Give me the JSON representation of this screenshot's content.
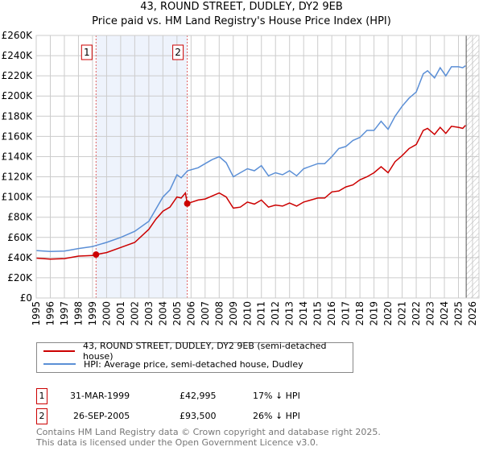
{
  "title": "43, ROUND STREET, DUDLEY, DY2 9EB",
  "subtitle": "Price paid vs. HM Land Registry's House Price Index (HPI)",
  "colors": {
    "property": "#cc0000",
    "hpi": "#5b8fd6",
    "shade": "#eef3fc"
  },
  "chart_data": {
    "type": "line",
    "xlim": [
      1995,
      2026
    ],
    "ylim": [
      0,
      260000
    ],
    "x_ticks": [
      "1995",
      "1996",
      "1997",
      "1998",
      "1999",
      "2000",
      "2001",
      "2002",
      "2003",
      "2004",
      "2005",
      "2006",
      "2007",
      "2008",
      "2009",
      "2010",
      "2011",
      "2012",
      "2013",
      "2014",
      "2015",
      "2016",
      "2017",
      "2018",
      "2019",
      "2020",
      "2021",
      "2022",
      "2023",
      "2024",
      "2025",
      "2026"
    ],
    "y_ticks": [
      "£0",
      "£20K",
      "£40K",
      "£60K",
      "£80K",
      "£100K",
      "£120K",
      "£140K",
      "£160K",
      "£180K",
      "£200K",
      "£220K",
      "£240K",
      "£260K"
    ],
    "series": [
      {
        "name": "43, ROUND STREET, DUDLEY, DY2 9EB (semi-detached house)",
        "color": "#cc0000",
        "x": [
          1995,
          1996,
          1997,
          1998,
          1999,
          1999.25,
          2000,
          2001,
          2002,
          2003,
          2003.5,
          2004,
          2004.5,
          2005,
          2005.3,
          2005.6,
          2005.73,
          2006.5,
          2007,
          2008,
          2008.5,
          2009,
          2009.5,
          2010,
          2010.5,
          2011,
          2011.5,
          2012,
          2012.5,
          2013,
          2013.5,
          2014,
          2015,
          2015.5,
          2016,
          2016.5,
          2017,
          2017.5,
          2018,
          2018.5,
          2019,
          2019.5,
          2020,
          2020.5,
          2021,
          2021.5,
          2022,
          2022.5,
          2022.8,
          2023.3,
          2023.7,
          2024.1,
          2024.5,
          2025,
          2025.3,
          2025.5
        ],
        "y": [
          39.5,
          38.5,
          39,
          41.5,
          42,
          43,
          45,
          50,
          55,
          68,
          78,
          86,
          90,
          100,
          99,
          104,
          93.5,
          97,
          98,
          104,
          100,
          89,
          90,
          95,
          93,
          97,
          90,
          92,
          91,
          94,
          91,
          95,
          99,
          99,
          105,
          106,
          110,
          112,
          117,
          120,
          124,
          130,
          124,
          135,
          141,
          148,
          152,
          166,
          168,
          162,
          169,
          163,
          170,
          169,
          168,
          171
        ]
      },
      {
        "name": "HPI: Average price, semi-detached house, Dudley",
        "color": "#5b8fd6",
        "x": [
          1995,
          1996,
          1997,
          1998,
          1999,
          1999.25,
          2000,
          2001,
          2002,
          2003,
          2003.5,
          2004,
          2004.5,
          2005,
          2005.3,
          2005.75,
          2006.5,
          2007,
          2007.5,
          2008,
          2008.5,
          2009,
          2009.5,
          2010,
          2010.5,
          2011,
          2011.5,
          2012,
          2012.5,
          2013,
          2013.5,
          2014,
          2015,
          2015.5,
          2016,
          2016.5,
          2017,
          2017.5,
          2018,
          2018.5,
          2019,
          2019.5,
          2020,
          2020.5,
          2021,
          2021.5,
          2022,
          2022.5,
          2022.8,
          2023.3,
          2023.7,
          2024.1,
          2024.5,
          2025,
          2025.3,
          2025.5
        ],
        "y": [
          47,
          46,
          46.5,
          49,
          51,
          52,
          55,
          60,
          66,
          76,
          88,
          100,
          107,
          122,
          119,
          126,
          129,
          133,
          137,
          140,
          134,
          120,
          124,
          128,
          126,
          131,
          121,
          124,
          122,
          126,
          121,
          128,
          133,
          133,
          140,
          148,
          150,
          156,
          159,
          166,
          166,
          175,
          167,
          180,
          190,
          198,
          204,
          222,
          225,
          218,
          228,
          220,
          229,
          229,
          228,
          230
        ]
      }
    ],
    "y_units": "thousands GBP",
    "annotations": [
      {
        "label": "1",
        "x": 1999.25,
        "y": 42.995
      },
      {
        "label": "2",
        "x": 2005.73,
        "y": 93.5
      }
    ]
  },
  "legend": {
    "property": "43, ROUND STREET, DUDLEY, DY2 9EB (semi-detached house)",
    "hpi": "HPI: Average price, semi-detached house, Dudley"
  },
  "sales": [
    {
      "num": "1",
      "date": "31-MAR-1999",
      "price": "£42,995",
      "hpi": "17% ↓ HPI"
    },
    {
      "num": "2",
      "date": "26-SEP-2005",
      "price": "£93,500",
      "hpi": "26% ↓ HPI"
    }
  ],
  "footer": {
    "line1": "Contains HM Land Registry data © Crown copyright and database right 2025.",
    "line2": "This data is licensed under the Open Government Licence v3.0."
  }
}
